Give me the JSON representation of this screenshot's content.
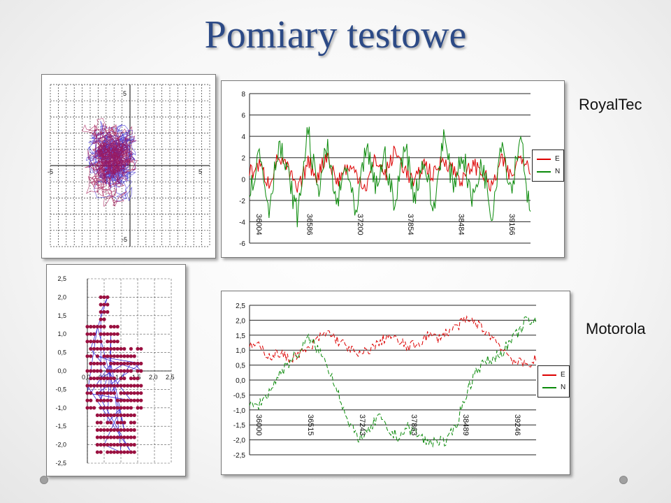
{
  "slide": {
    "title": "Pomiary testowe",
    "label_royaltec": "RoyalTec",
    "label_motorola": "Motorola",
    "nav_icons": [
      "nav-dot-icon",
      "nav-dot-icon"
    ]
  },
  "colors": {
    "series_e": "#dd0000",
    "series_n": "#0a8a0a",
    "trace": "#3b2ad0",
    "trace_alt": "#a01050",
    "marker": "#9a1040",
    "grid": "#222222"
  },
  "chart_data": [
    {
      "type": "scatter",
      "xlim": [
        -5,
        5
      ],
      "ylim": [
        -5,
        5
      ],
      "x_ticks": [
        "-5",
        "5"
      ],
      "y_ticks": [
        "5",
        "-5"
      ],
      "grid": true,
      "note": "dense trajectory of position fixes, RoyalTec"
    },
    {
      "type": "line",
      "x_ticks": [
        "36004",
        "36586",
        "37200",
        "37854",
        "38484",
        "39166"
      ],
      "y_ticks": [
        "8",
        "6",
        "4",
        "2",
        "0",
        "-2",
        "-4",
        "-6"
      ],
      "ylim": [
        -6,
        8
      ],
      "series": [
        {
          "name": "E",
          "values": [
            0.5,
            1.3,
            -0.4,
            2.1,
            0.8,
            -1.2,
            1.6,
            0.2,
            2.4,
            -0.3,
            1.1,
            0.6,
            -0.8,
            1.9,
            0.4,
            2.6,
            1.0,
            -0.5,
            1.5,
            0.3,
            2.0,
            0.9,
            -0.2,
            1.4,
            0.7,
            -0.9,
            1.8,
            0.1,
            2.3,
            1.2
          ]
        },
        {
          "name": "N",
          "values": [
            -1.5,
            2.6,
            -2.8,
            3.4,
            0.2,
            -3.6,
            4.8,
            -1.2,
            2.9,
            -2.5,
            1.4,
            -3.9,
            3.1,
            -0.8,
            2.2,
            -2.9,
            3.6,
            -1.6,
            1.9,
            -3.2,
            4.2,
            -0.6,
            2.5,
            -2.2,
            1.7,
            -3.4,
            3.8,
            -1.1,
            4.5,
            -4.1
          ]
        }
      ],
      "legend": "right"
    },
    {
      "type": "scatter",
      "xlim": [
        0,
        2.5
      ],
      "ylim": [
        -2.5,
        2.5
      ],
      "x_ticks": [
        "0,0",
        "0,5",
        "1,0",
        "1,5",
        "2,0",
        "2,5"
      ],
      "y_ticks": [
        "2,5",
        "2,0",
        "1,5",
        "1,0",
        "0,5",
        "0,0",
        "-0,5",
        "-1,0",
        "-1,5",
        "-2,0",
        "-2,5"
      ],
      "grid": true,
      "note": "quantized position fixes, Motorola"
    },
    {
      "type": "line",
      "x_ticks": [
        "36000",
        "36515",
        "37243",
        "37863",
        "38489",
        "39246"
      ],
      "y_ticks": [
        "2,5",
        "2,0",
        "1,5",
        "1,0",
        "0,5",
        "0,0",
        "-0,5",
        "-1,0",
        "-1,5",
        "-2,0",
        "-2,5"
      ],
      "ylim": [
        -2.5,
        2.5
      ],
      "series": [
        {
          "name": "E",
          "values": [
            1.2,
            1.1,
            0.8,
            0.9,
            0.7,
            0.9,
            1.0,
            1.4,
            1.6,
            1.3,
            1.1,
            0.8,
            1.0,
            1.2,
            1.5,
            1.3,
            1.1,
            1.2,
            1.5,
            1.4,
            1.6,
            1.8,
            2.0,
            1.9,
            1.6,
            1.3,
            0.9,
            0.6,
            0.5,
            0.7
          ]
        },
        {
          "name": "N",
          "values": [
            -0.9,
            -0.8,
            -0.4,
            0.2,
            0.6,
            0.9,
            1.4,
            1.0,
            0.4,
            -0.4,
            -1.5,
            -1.9,
            -1.8,
            -1.2,
            -1.7,
            -1.9,
            -1.6,
            -1.8,
            -2.1,
            -2.0,
            -2.1,
            -1.4,
            -0.4,
            0.4,
            0.6,
            0.8,
            1.1,
            1.5,
            2.0,
            1.9
          ]
        }
      ],
      "legend": "right"
    }
  ]
}
